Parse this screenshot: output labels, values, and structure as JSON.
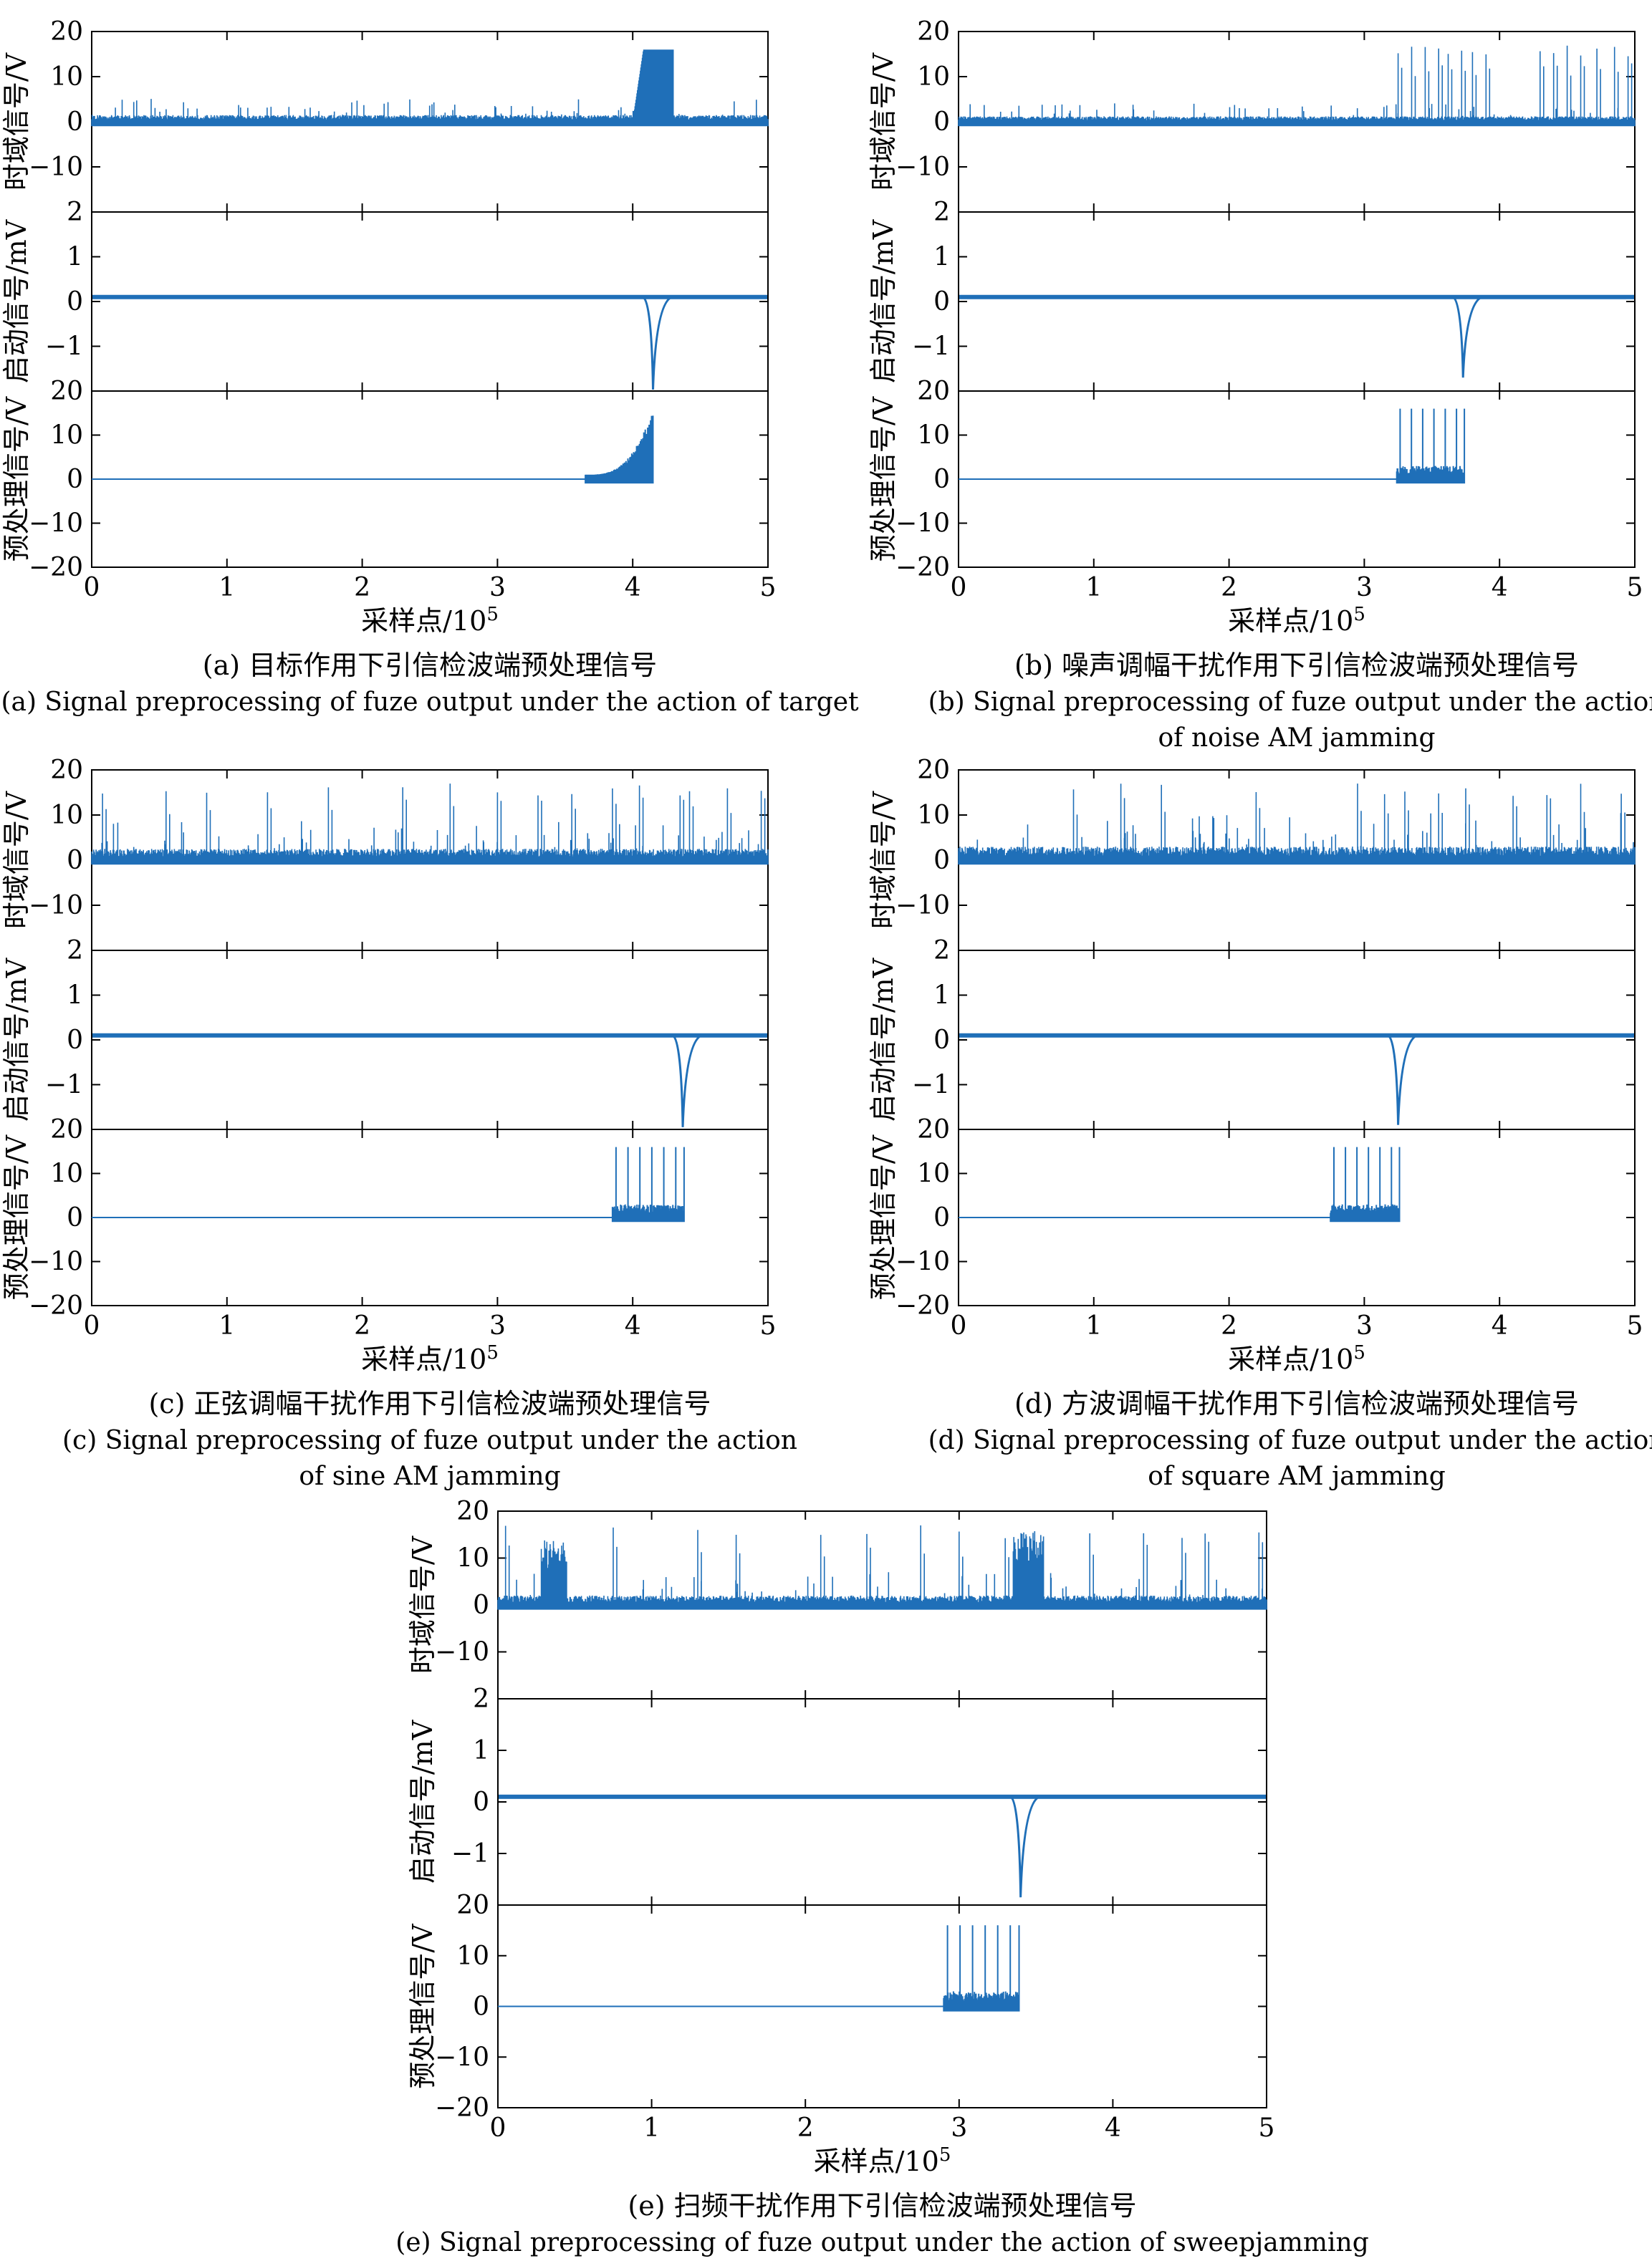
{
  "figure": {
    "ylabels": [
      "时域信号/V",
      "启动信号/mV",
      "预处理信号/V"
    ],
    "xlabel_base": "采样点/10",
    "xlabel_exp": "5",
    "x_tick_labels": [
      "0",
      "1",
      "2",
      "3",
      "4",
      "5"
    ],
    "y_tick_labels": {
      "time": [
        "20",
        "10",
        "0",
        "−10"
      ],
      "start": [
        "2",
        "1",
        "0",
        "−1"
      ],
      "pre": [
        "20",
        "10",
        "0",
        "−10",
        "−20"
      ]
    }
  },
  "chart_data": [
    {
      "id": "a",
      "type": "line",
      "caption_cn": "(a) 目标作用下引信检波端预处理信号",
      "caption_en": [
        "(a) Signal preprocessing of fuze output under the action of target"
      ],
      "xlim": [
        0,
        5
      ],
      "panels": {
        "time": {
          "ylim": [
            -20,
            20
          ],
          "baseline": 0,
          "noise": 1.5,
          "bursts": [
            {
              "x0": 4.0,
              "x1": 4.3,
              "top": 16,
              "shape": "ramp"
            }
          ],
          "spikes": []
        },
        "start": {
          "ylim": [
            -2,
            2
          ],
          "baseline": 0.1,
          "dip_x": 4.15,
          "dip_min": -2.1
        },
        "pre": {
          "ylim": [
            -20,
            20
          ],
          "active": [
            3.65,
            4.15
          ],
          "top": 16,
          "shape": "ramp"
        }
      }
    },
    {
      "id": "b",
      "type": "line",
      "caption_cn": "(b) 噪声调幅干扰作用下引信检波端预处理信号",
      "caption_en": [
        "(b) Signal preprocessing of fuze output under the action",
        "of noise AM jamming"
      ],
      "xlim": [
        0,
        5
      ],
      "panels": {
        "time": {
          "ylim": [
            -20,
            20
          ],
          "baseline": 0,
          "noise": 1.2,
          "bursts": [],
          "spikes": [
            3.25,
            3.35,
            3.45,
            3.55,
            3.62,
            3.72,
            3.8,
            3.9,
            4.3,
            4.4,
            4.5,
            4.6,
            4.72,
            4.85,
            4.95
          ]
        },
        "start": {
          "ylim": [
            -2,
            2
          ],
          "baseline": 0.1,
          "dip_x": 3.73,
          "dip_min": -1.7
        },
        "pre": {
          "ylim": [
            -20,
            20
          ],
          "active": [
            3.24,
            3.74
          ],
          "top": 16,
          "shape": "spikes"
        }
      }
    },
    {
      "id": "c",
      "type": "line",
      "caption_cn": "(c) 正弦调幅干扰作用下引信检波端预处理信号",
      "caption_en": [
        "(c) Signal preprocessing of fuze output under the action",
        "of sine AM jamming"
      ],
      "xlim": [
        0,
        5
      ],
      "panels": {
        "time": {
          "ylim": [
            -20,
            20
          ],
          "baseline": 0,
          "noise": 2.5,
          "bursts": [],
          "spikes": [
            0.08,
            0.55,
            0.85,
            1.3,
            1.75,
            2.3,
            2.65,
            3.0,
            3.3,
            3.55,
            3.85,
            4.05,
            4.35,
            4.42,
            4.7,
            4.95
          ]
        },
        "start": {
          "ylim": [
            -2,
            2
          ],
          "baseline": 0.1,
          "dip_x": 4.37,
          "dip_min": -1.95
        },
        "pre": {
          "ylim": [
            -20,
            20
          ],
          "active": [
            3.85,
            4.38
          ],
          "top": 16,
          "shape": "spikes"
        }
      }
    },
    {
      "id": "d",
      "type": "line",
      "caption_cn": "(d) 方波调幅干扰作用下引信检波端预处理信号",
      "caption_en": [
        "(d) Signal preprocessing of fuze output under the action",
        "of square AM jamming"
      ],
      "xlim": [
        0,
        5
      ],
      "panels": {
        "time": {
          "ylim": [
            -20,
            20
          ],
          "baseline": 0,
          "noise": 3,
          "bursts": [],
          "spikes": [
            0.85,
            1.2,
            1.5,
            2.2,
            2.95,
            3.15,
            3.3,
            3.55,
            3.75,
            4.1,
            4.35,
            4.6,
            4.9
          ]
        },
        "start": {
          "ylim": [
            -2,
            2
          ],
          "baseline": 0.1,
          "dip_x": 3.25,
          "dip_min": -1.9
        },
        "pre": {
          "ylim": [
            -20,
            20
          ],
          "active": [
            2.75,
            3.26
          ],
          "top": 16,
          "shape": "spikes"
        }
      }
    },
    {
      "id": "e",
      "type": "line",
      "caption_cn": "(e) 扫频干扰作用下引信检波端预处理信号",
      "caption_en": [
        "(e) Signal preprocessing of fuze output under the action of sweepjamming"
      ],
      "xlim": [
        0,
        5
      ],
      "panels": {
        "time": {
          "ylim": [
            -20,
            20
          ],
          "baseline": 0,
          "noise": 2,
          "bursts": [
            {
              "x0": 0.28,
              "x1": 0.45,
              "top": 14,
              "shape": "dense"
            },
            {
              "x0": 3.35,
              "x1": 3.55,
              "top": 16,
              "shape": "dense"
            }
          ],
          "spikes": [
            0.05,
            0.75,
            1.3,
            1.55,
            2.1,
            2.4,
            2.75,
            3.0,
            3.3,
            3.85,
            4.2,
            4.45,
            4.6,
            4.95
          ]
        },
        "start": {
          "ylim": [
            -2,
            2
          ],
          "baseline": 0.1,
          "dip_x": 3.4,
          "dip_min": -1.85
        },
        "pre": {
          "ylim": [
            -20,
            20
          ],
          "active": [
            2.9,
            3.39
          ],
          "top": 16,
          "shape": "spikes"
        }
      }
    }
  ]
}
